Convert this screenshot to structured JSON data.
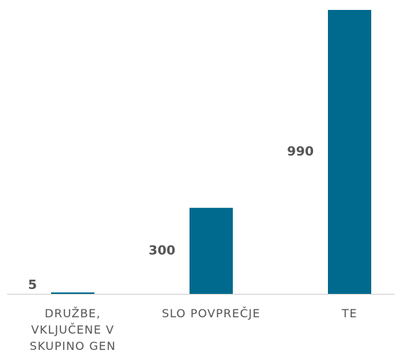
{
  "chart_data": {
    "type": "bar",
    "categories": [
      "DRUŽBE, VKLJUČENE V SKUPINO GEN",
      "SLO POVPREČJE",
      "TE"
    ],
    "values": [
      5,
      300,
      990
    ],
    "color": "#006a8e"
  }
}
